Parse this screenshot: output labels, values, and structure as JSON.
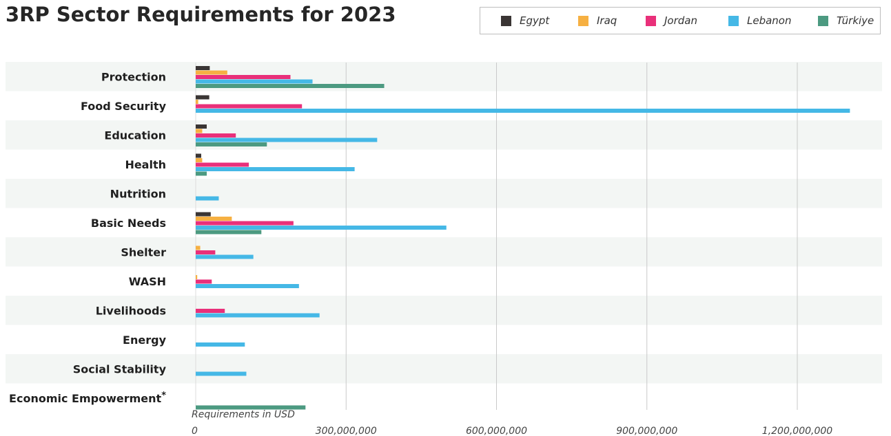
{
  "title": "3RP Sector Requirements for 2023",
  "chart_data": {
    "type": "bar",
    "orientation": "horizontal",
    "title": "3RP Sector Requirements for 2023",
    "xlabel": "Requirements in USD",
    "ylabel": "",
    "xlim": [
      0,
      1300000000
    ],
    "xticks": [
      0,
      300000000,
      600000000,
      900000000,
      1200000000
    ],
    "xtick_labels": [
      "0",
      "300,000,000",
      "600,000,000",
      "900,000,000",
      "1,200,000,000"
    ],
    "categories": [
      "Protection",
      "Food Security",
      "Education",
      "Health",
      "Nutrition",
      "Basic Needs",
      "Shelter",
      "WASH",
      "Livelihoods",
      "Energy",
      "Social Stability",
      "Economic Empowerment"
    ],
    "category_marks": [
      "",
      "",
      "",
      "",
      "",
      "",
      "",
      "",
      "",
      "",
      "",
      "*"
    ],
    "legend_position": "top-right",
    "grid": "vertical",
    "series": [
      {
        "name": "Egypt",
        "color": "#3a3534",
        "values": [
          28000000,
          27000000,
          22000000,
          11000000,
          0,
          30000000,
          0,
          0,
          0,
          0,
          0,
          0
        ]
      },
      {
        "name": "Iraq",
        "color": "#f6b042",
        "values": [
          63000000,
          5000000,
          13000000,
          13000000,
          0,
          72000000,
          9000000,
          3000000,
          0,
          0,
          0,
          0
        ]
      },
      {
        "name": "Jordan",
        "color": "#e9307a",
        "values": [
          189000000,
          212000000,
          80000000,
          106000000,
          0,
          195000000,
          39000000,
          32000000,
          58000000,
          0,
          0,
          0
        ]
      },
      {
        "name": "Lebanon",
        "color": "#45b8e6",
        "values": [
          233000000,
          1305000000,
          362000000,
          317000000,
          46000000,
          500000000,
          115000000,
          206000000,
          247000000,
          98000000,
          101000000,
          0
        ]
      },
      {
        "name": "Türkiye",
        "color": "#4c9a81",
        "values": [
          376000000,
          0,
          142000000,
          22000000,
          0,
          131000000,
          0,
          0,
          0,
          0,
          0,
          219000000
        ]
      }
    ],
    "band_colors": [
      "#f3f6f4",
      "#ffffff"
    ]
  }
}
